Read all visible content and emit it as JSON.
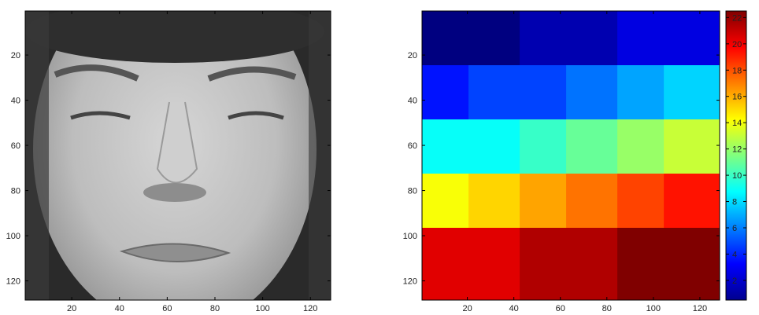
{
  "chart_data": [
    {
      "type": "image",
      "content": "grayscale face photograph",
      "x_ticks": [
        "20",
        "40",
        "60",
        "80",
        "100",
        "120"
      ],
      "y_ticks": [
        "20",
        "40",
        "60",
        "80",
        "100",
        "120"
      ],
      "xlim": [
        0.5,
        128.5
      ],
      "ylim": [
        0.5,
        128.5
      ],
      "y_reversed": true
    },
    {
      "type": "heatmap",
      "colormap": "jet",
      "x_ticks": [
        "20",
        "40",
        "60",
        "80",
        "100",
        "120"
      ],
      "y_ticks": [
        "20",
        "40",
        "60",
        "80",
        "100",
        "120"
      ],
      "xlim": [
        0.5,
        128.5
      ],
      "ylim": [
        0.5,
        128.5
      ],
      "y_reversed": true,
      "clim": [
        1,
        22
      ],
      "colorbar_ticks": [
        "22",
        "20",
        "18",
        "16",
        "14",
        "12",
        "10",
        "8",
        "6",
        "4",
        "2"
      ],
      "colorbar_tick_values": [
        22,
        20,
        18,
        16,
        14,
        12,
        10,
        8,
        6,
        4,
        2
      ],
      "x_edges": [
        0,
        20,
        42,
        62,
        84,
        104,
        128
      ],
      "y_edges": [
        0,
        24,
        48,
        72,
        96,
        128
      ],
      "rows": [
        [
          1,
          1,
          2,
          2,
          3,
          3
        ],
        [
          4,
          5,
          5,
          6,
          7,
          8
        ],
        [
          9,
          9,
          10,
          11,
          12,
          13
        ],
        [
          14,
          15,
          16,
          17,
          18,
          19
        ],
        [
          20,
          20,
          21,
          21,
          22,
          22
        ]
      ]
    }
  ]
}
